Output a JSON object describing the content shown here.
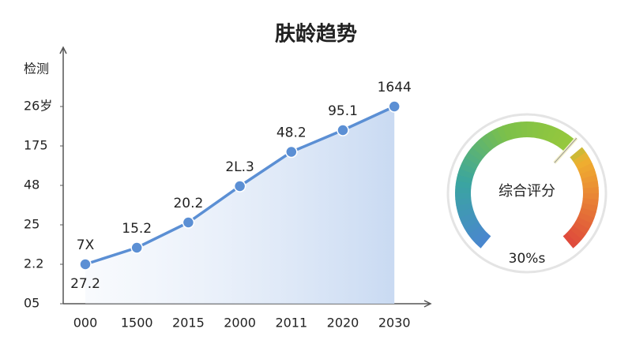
{
  "chart_data": {
    "type": "line",
    "title": "肤龄趋势",
    "y_label": "检测",
    "categories": [
      "000",
      "1500",
      "2015",
      "2000",
      "2011",
      "2020",
      "2030"
    ],
    "series": [
      {
        "color": "#5b8fd4",
        "values": [
          1.0,
          1.42,
          2.06,
          2.98,
          3.85,
          4.4,
          5.0
        ]
      }
    ],
    "point_labels": [
      "7X",
      "15.2",
      "20.2",
      "2L.3",
      "48.2",
      "95.1",
      "1644"
    ],
    "annotation": "27.2",
    "ylim": [
      0,
      6.5
    ],
    "yticks": [
      {
        "value": 0,
        "label": "05"
      },
      {
        "value": 1,
        "label": "2.2"
      },
      {
        "value": 2,
        "label": "25"
      },
      {
        "value": 3,
        "label": "48"
      },
      {
        "value": 4,
        "label": "175"
      },
      {
        "value": 5,
        "label": "26岁"
      }
    ]
  },
  "gauge": {
    "label": "综合评分",
    "value_text": "30%s"
  }
}
